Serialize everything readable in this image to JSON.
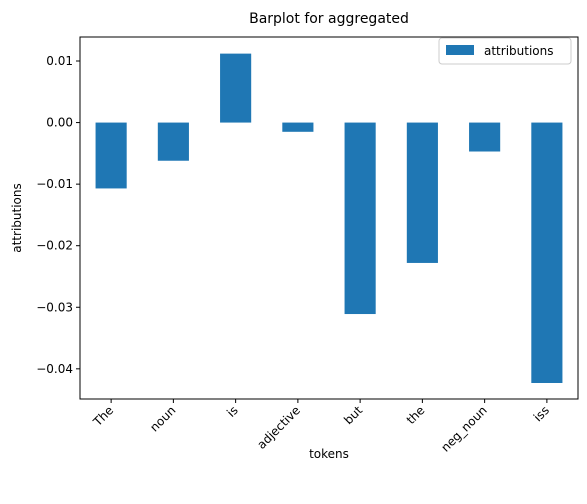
{
  "chart_data": {
    "type": "bar",
    "title": "Barplot for aggregated",
    "xlabel": "tokens",
    "ylabel": "attributions",
    "categories": [
      "The",
      "noun",
      "is",
      "adjective",
      "but",
      "the",
      "neg_noun",
      "iss"
    ],
    "series": [
      {
        "name": "attributions",
        "values": [
          -0.0107,
          -0.0062,
          0.0112,
          -0.0015,
          -0.0311,
          -0.0228,
          -0.0047,
          -0.0423
        ],
        "color": "#1f77b4"
      }
    ],
    "ylim": [
      -0.0449,
      0.0139
    ],
    "yticks": [
      0.01,
      0.0,
      -0.01,
      -0.02,
      -0.03,
      -0.04
    ],
    "ytick_labels": [
      "0.01",
      "0.00",
      "−0.01",
      "−0.02",
      "−0.03",
      "−0.04"
    ],
    "grid": false,
    "legend_position": "top-right"
  }
}
